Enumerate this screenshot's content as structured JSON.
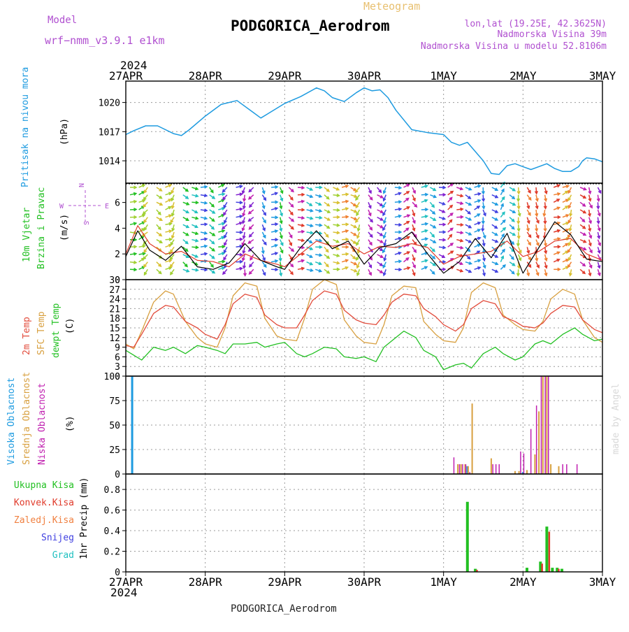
{
  "header": {
    "model_label": "Model",
    "model_name": "wrf−nmm_v3.9.1  e1km",
    "meteogram_label": "Meteogram",
    "station": "PODGORICA_Aerodrom",
    "lonlat": "lon,lat (19.25E, 42.3625N)",
    "elevation": "Nadmorska Visina 39m",
    "model_elevation": "Nadmorska Visina u modelu 52.8106m",
    "footer_station": "PODGORICA_Aerodrom",
    "credit": "made by Angel"
  },
  "time_axis": {
    "year": "2024",
    "labels": [
      "27APR",
      "28APR",
      "29APR",
      "30APR",
      "1MAY",
      "2MAY",
      "3MAY"
    ]
  },
  "colors": {
    "pressure": "#1e9be0",
    "wind_speed": "#000000",
    "wind_gust": "#e03a2a",
    "temp_2m": "#e24c3c",
    "temp_sfc": "#d8a040",
    "dewpoint": "#22c022",
    "cloud_high": "#1e9be0",
    "cloud_mid": "#d8a040",
    "cloud_low": "#c020b0",
    "precip_total": "#22c022",
    "precip_conv": "#e03a2a",
    "precip_frz": "#f08040",
    "precip_snow": "#4040e0",
    "precip_graupel": "#20c0c0"
  },
  "chart_data": [
    {
      "type": "line",
      "panel": "pressure",
      "ylabel": [
        "Pritisak na nivou mora",
        "(hPa)"
      ],
      "yticks": [
        1014,
        1017,
        1020
      ],
      "ylim": [
        1011.7,
        1022.2
      ],
      "x": [
        0,
        0.1,
        0.25,
        0.4,
        0.6,
        0.7,
        0.8,
        1.0,
        1.2,
        1.4,
        1.6,
        1.7,
        1.8,
        2.0,
        2.2,
        2.4,
        2.5,
        2.6,
        2.75,
        2.9,
        3.0,
        3.1,
        3.2,
        3.3,
        3.4,
        3.6,
        3.8,
        4.0,
        4.1,
        4.2,
        4.3,
        4.5,
        4.6,
        4.7,
        4.8,
        4.9,
        5.0,
        5.1,
        5.3,
        5.4,
        5.5,
        5.6,
        5.7,
        5.75,
        5.8,
        5.9,
        6.0
      ],
      "series": [
        {
          "values": [
            1016.7,
            1017.1,
            1017.6,
            1017.6,
            1016.8,
            1016.6,
            1017.2,
            1018.6,
            1019.8,
            1020.2,
            1019.0,
            1018.4,
            1018.9,
            1019.9,
            1020.6,
            1021.5,
            1021.2,
            1020.5,
            1020.1,
            1021.0,
            1021.5,
            1021.2,
            1021.3,
            1020.5,
            1019.2,
            1017.2,
            1016.9,
            1016.7,
            1015.9,
            1015.6,
            1015.9,
            1014.0,
            1012.7,
            1012.6,
            1013.5,
            1013.7,
            1013.4,
            1013.1,
            1013.7,
            1013.2,
            1012.9,
            1012.9,
            1013.4,
            1014.0,
            1014.3,
            1014.2,
            1013.9
          ]
        }
      ]
    },
    {
      "type": "line",
      "panel": "wind",
      "ylabel": [
        "10m Vjetar",
        "Brzina i Pravac",
        "(m/s)"
      ],
      "compass": {
        "n": "N",
        "s": "S",
        "e": "E",
        "w": "W"
      },
      "yticks": [
        0,
        2,
        4,
        6
      ],
      "ylim": [
        0,
        7.5
      ],
      "x": [
        0,
        0.15,
        0.3,
        0.5,
        0.7,
        0.9,
        1.1,
        1.3,
        1.5,
        1.7,
        1.9,
        2.0,
        2.2,
        2.4,
        2.6,
        2.8,
        3.0,
        3.2,
        3.4,
        3.6,
        3.8,
        4.0,
        4.2,
        4.4,
        4.6,
        4.8,
        5.0,
        5.2,
        5.4,
        5.6,
        5.8,
        6.0
      ],
      "series": [
        {
          "name": "speed",
          "values": [
            1.8,
            3.8,
            2.3,
            1.5,
            2.6,
            1.0,
            0.8,
            1.3,
            2.8,
            1.5,
            1.0,
            0.8,
            2.5,
            3.8,
            2.4,
            3.0,
            1.2,
            2.5,
            2.8,
            3.7,
            2.0,
            0.5,
            1.4,
            3.2,
            1.7,
            3.6,
            0.5,
            2.5,
            4.5,
            3.5,
            1.6,
            1.4
          ]
        },
        {
          "name": "gust",
          "values": [
            2.0,
            4.2,
            2.8,
            2.0,
            2.2,
            1.5,
            1.4,
            1.0,
            2.0,
            1.5,
            1.2,
            1.0,
            2.0,
            3.0,
            2.6,
            2.8,
            2.0,
            2.6,
            2.5,
            2.8,
            2.5,
            1.2,
            1.8,
            2.0,
            2.2,
            3.0,
            1.8,
            2.2,
            3.0,
            3.2,
            2.0,
            1.5
          ]
        }
      ]
    },
    {
      "type": "line",
      "panel": "temperature",
      "ylabel": [
        "2m Temp",
        "SFC Temp",
        "dewpt Temp",
        "(C)"
      ],
      "yticks": [
        0,
        3,
        6,
        9,
        12,
        15,
        18,
        21,
        24,
        27,
        30
      ],
      "ylim": [
        0,
        30
      ],
      "x": [
        0,
        0.1,
        0.2,
        0.35,
        0.5,
        0.6,
        0.75,
        0.9,
        1.0,
        1.15,
        1.25,
        1.35,
        1.5,
        1.65,
        1.75,
        1.9,
        2.0,
        2.15,
        2.25,
        2.35,
        2.5,
        2.65,
        2.75,
        2.9,
        3.0,
        3.15,
        3.25,
        3.35,
        3.5,
        3.65,
        3.75,
        3.9,
        4.0,
        4.15,
        4.25,
        4.35,
        4.5,
        4.65,
        4.75,
        4.9,
        5.0,
        5.15,
        5.25,
        5.35,
        5.5,
        5.65,
        5.75,
        5.9,
        6.0
      ],
      "series": [
        {
          "name": "2m Temp",
          "values": [
            9.5,
            9,
            13,
            19.5,
            22,
            21.5,
            17,
            15,
            13,
            11.5,
            16,
            22.5,
            25.5,
            24.5,
            19,
            16,
            15,
            15,
            19,
            23.5,
            26.5,
            25.5,
            20.5,
            17.5,
            16.5,
            16,
            19,
            23,
            25.5,
            25,
            21,
            18.5,
            16,
            14,
            16,
            21,
            23.5,
            22.5,
            18.5,
            17,
            15.5,
            15,
            16.5,
            19.5,
            22,
            21.5,
            17.5,
            14.5,
            13.5
          ]
        },
        {
          "name": "SFC Temp",
          "values": [
            10,
            8.5,
            14,
            23,
            26.5,
            25.5,
            17,
            12,
            10,
            9,
            15,
            25,
            29,
            28,
            18,
            12.5,
            11.5,
            11,
            18,
            27,
            30,
            28.5,
            17.5,
            12.5,
            10.5,
            10,
            16,
            25,
            28,
            27.5,
            17,
            13,
            11,
            10.5,
            15,
            26,
            29,
            27.5,
            19,
            16,
            14.5,
            14,
            17,
            24,
            27,
            25.5,
            17.5,
            12,
            10.5
          ]
        },
        {
          "name": "dewpt Temp",
          "values": [
            8,
            6.5,
            5,
            9,
            8,
            9,
            7,
            9.5,
            9,
            8,
            7,
            10,
            10,
            10.5,
            9,
            10,
            10.5,
            7,
            6,
            7,
            9,
            8.5,
            6,
            5.5,
            6,
            4.5,
            9,
            11,
            14,
            12,
            8,
            6,
            2,
            3.5,
            4,
            2.5,
            7,
            9,
            7,
            5,
            6,
            10,
            11,
            10,
            13,
            15,
            13,
            11,
            11.5
          ]
        }
      ]
    },
    {
      "type": "bar",
      "panel": "cloud",
      "ylabel": [
        "Visoka Oblacnost",
        "Srednja Oblacnost",
        "Niska Oblacnost",
        "(%)"
      ],
      "yticks": [
        0,
        25,
        50,
        75,
        100
      ],
      "ylim": [
        0,
        100
      ],
      "series": [
        {
          "name": "Visoka Oblacnost",
          "x": [
            0.08,
            4.3,
            5.0
          ],
          "values": [
            100,
            8,
            2
          ]
        },
        {
          "name": "Srednja Oblacnost",
          "x": [
            4.18,
            4.22,
            4.27,
            4.31,
            4.36,
            4.6,
            4.9,
            4.95,
            5.05,
            5.15,
            5.2,
            5.25,
            5.3,
            5.35,
            5.45
          ],
          "values": [
            10,
            10,
            10,
            8,
            72,
            16,
            3,
            3,
            4,
            20,
            64,
            100,
            100,
            10,
            8
          ]
        },
        {
          "name": "Niska Oblacnost",
          "x": [
            4.13,
            4.2,
            4.24,
            4.28,
            4.33,
            4.62,
            4.66,
            4.7,
            4.97,
            5.01,
            5.1,
            5.17,
            5.23,
            5.28,
            5.32,
            5.5,
            5.55,
            5.68
          ],
          "values": [
            17,
            10,
            10,
            10,
            2,
            10,
            10,
            10,
            23,
            21,
            46,
            70,
            100,
            100,
            100,
            10,
            10,
            10
          ]
        }
      ]
    },
    {
      "type": "bar",
      "panel": "precip",
      "ylabel": [
        "1hr Precip (mm)"
      ],
      "legend": [
        "Ukupna Kisa",
        "Konvek.Kisa",
        "Zaledj.Kisa",
        "Snijeg",
        "Grad"
      ],
      "yticks": [
        0,
        0.2,
        0.4,
        0.6,
        0.8
      ],
      "ylim": [
        0,
        0.95
      ],
      "series": [
        {
          "name": "Ukupna Kisa",
          "x": [
            4.3,
            4.4,
            5.05,
            5.22,
            5.3,
            5.37,
            5.43,
            5.49
          ],
          "values": [
            0.68,
            0.03,
            0.04,
            0.1,
            0.44,
            0.04,
            0.04,
            0.03
          ]
        },
        {
          "name": "Konvek.Kisa",
          "x": [
            4.42,
            5.24,
            5.33,
            5.45
          ],
          "values": [
            0.02,
            0.08,
            0.39,
            0.03
          ]
        }
      ]
    }
  ]
}
